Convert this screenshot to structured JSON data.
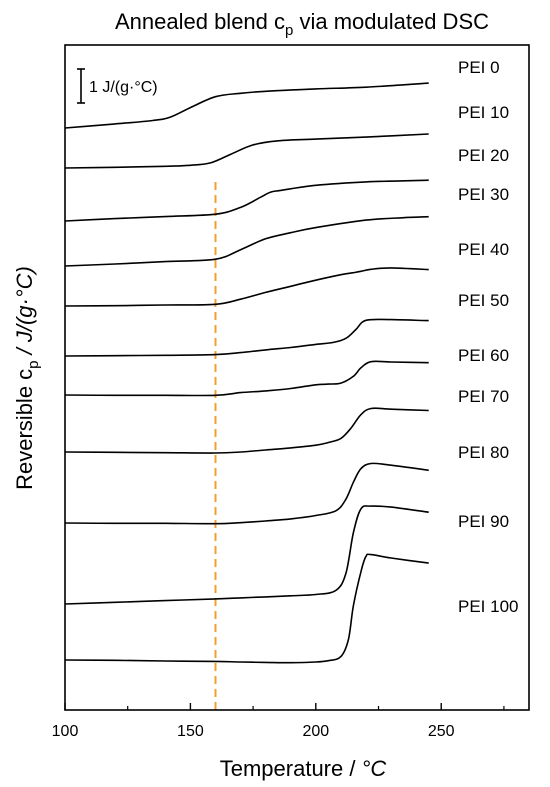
{
  "chart_data": {
    "type": "line",
    "title": "Annealed blend c",
    "title_subscript": "p",
    "title_suffix": " via modulated DSC",
    "xlabel": "Temperature / ",
    "xlabel_unit": "°C",
    "ylabel_prefix": "Reversible c",
    "ylabel_subscript": "p",
    "ylabel_unit": " / J/(g·°C)",
    "xlim": [
      100,
      285
    ],
    "xticks": [
      "100",
      "150",
      "200",
      "250"
    ],
    "xtick_values": [
      100,
      150,
      200,
      250
    ],
    "y_ticks_shown": false,
    "scale_bar_label": "1 J/(g·°C)",
    "scale_bar_value": 1,
    "reference_line": {
      "x": 160,
      "color": "#f0a030",
      "style": "dashed"
    },
    "line_color": "#000000",
    "series": [
      {
        "name": "PEI 0",
        "x": [
          100,
          120,
          135,
          142,
          150,
          160,
          170,
          180,
          200,
          220,
          245
        ],
        "y": [
          0,
          0.12,
          0.22,
          0.32,
          0.6,
          0.92,
          1.02,
          1.08,
          1.15,
          1.2,
          1.32
        ]
      },
      {
        "name": "PEI 10",
        "x": [
          100,
          120,
          140,
          150,
          158,
          166,
          175,
          185,
          200,
          220,
          245
        ],
        "y": [
          0,
          0.02,
          0.05,
          0.08,
          0.15,
          0.4,
          0.68,
          0.8,
          0.85,
          0.91,
          1.0
        ]
      },
      {
        "name": "PEI 20",
        "x": [
          100,
          120,
          140,
          160,
          170,
          178,
          182,
          186,
          200,
          220,
          245
        ],
        "y": [
          0,
          0.07,
          0.13,
          0.2,
          0.4,
          0.7,
          0.85,
          0.9,
          1.05,
          1.15,
          1.2
        ]
      },
      {
        "name": "PEI 30",
        "x": [
          100,
          120,
          140,
          160,
          170,
          180,
          190,
          200,
          220,
          235,
          245
        ],
        "y": [
          0,
          0.06,
          0.13,
          0.2,
          0.48,
          0.8,
          0.98,
          1.13,
          1.35,
          1.42,
          1.45
        ]
      },
      {
        "name": "PEI 40",
        "x": [
          100,
          120,
          140,
          160,
          170,
          180,
          190,
          200,
          210,
          215,
          218,
          222,
          230,
          245
        ],
        "y": [
          0,
          0.01,
          0.03,
          0.05,
          0.2,
          0.4,
          0.58,
          0.76,
          0.92,
          0.98,
          1.02,
          1.08,
          1.12,
          1.07
        ]
      },
      {
        "name": "PEI 50",
        "x": [
          100,
          120,
          140,
          160,
          170,
          180,
          190,
          200,
          207,
          212,
          216,
          220,
          230,
          245
        ],
        "y": [
          0,
          0.01,
          0.02,
          0.04,
          0.1,
          0.18,
          0.25,
          0.34,
          0.4,
          0.52,
          0.78,
          1.05,
          1.07,
          1.04
        ]
      },
      {
        "name": "PEI 60",
        "x": [
          100,
          120,
          140,
          160,
          170,
          180,
          190,
          200,
          205,
          210,
          215,
          218,
          222,
          230,
          245
        ],
        "y": [
          0,
          -0.01,
          -0.01,
          -0.01,
          0.07,
          0.12,
          0.19,
          0.3,
          0.32,
          0.35,
          0.55,
          0.8,
          0.98,
          0.97,
          0.95
        ]
      },
      {
        "name": "PEI 70",
        "x": [
          100,
          120,
          140,
          160,
          170,
          180,
          190,
          200,
          205,
          210,
          214,
          218,
          222,
          230,
          245
        ],
        "y": [
          0,
          -0.01,
          -0.02,
          -0.03,
          0.0,
          0.06,
          0.12,
          0.2,
          0.28,
          0.4,
          0.7,
          1.1,
          1.28,
          1.26,
          1.22
        ]
      },
      {
        "name": "PEI 80",
        "x": [
          100,
          120,
          140,
          160,
          170,
          180,
          190,
          200,
          208,
          212,
          215,
          218,
          222,
          230,
          245
        ],
        "y": [
          0,
          -0.01,
          -0.01,
          -0.02,
          0.01,
          0.06,
          0.12,
          0.22,
          0.36,
          0.7,
          1.2,
          1.6,
          1.75,
          1.7,
          1.55
        ]
      },
      {
        "name": "PEI 90",
        "x": [
          100,
          120,
          140,
          160,
          170,
          180,
          190,
          200,
          208,
          212,
          215,
          218,
          222,
          230,
          245
        ],
        "y": [
          0,
          0.05,
          0.1,
          0.15,
          0.18,
          0.21,
          0.24,
          0.28,
          0.4,
          0.9,
          2.1,
          2.8,
          2.88,
          2.85,
          2.7
        ]
      },
      {
        "name": "PEI 100",
        "x": [
          100,
          120,
          140,
          160,
          170,
          180,
          190,
          200,
          205,
          210,
          213,
          215,
          218,
          220,
          222,
          230,
          245
        ],
        "y": [
          0,
          -0.01,
          -0.03,
          -0.04,
          -0.06,
          -0.07,
          -0.08,
          -0.06,
          -0.02,
          0.1,
          0.6,
          1.6,
          2.6,
          3.05,
          3.1,
          3.0,
          2.85
        ]
      }
    ]
  }
}
